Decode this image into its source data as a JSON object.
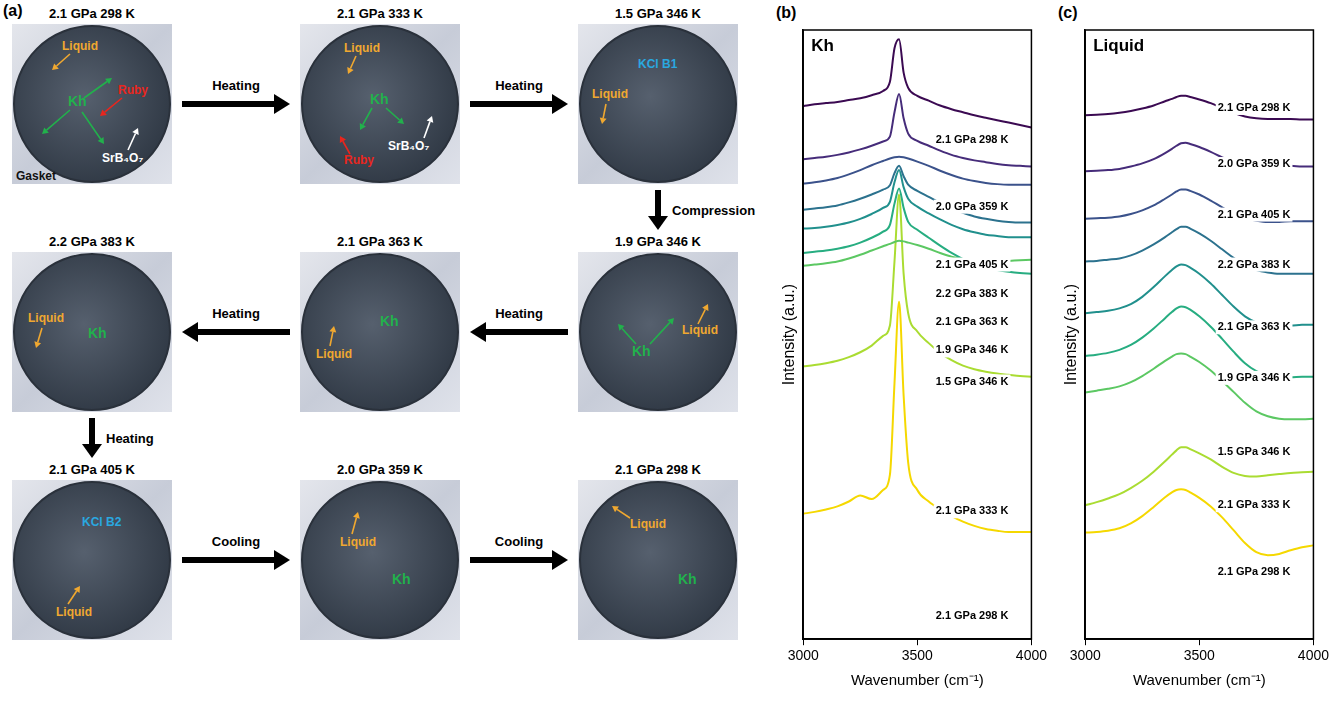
{
  "panel_a": {
    "letter": "(a)",
    "images": [
      {
        "title": "2.1 GPa 298 K",
        "labels": [
          {
            "text": "Liquid",
            "color": "#f0a830"
          },
          {
            "text": "Kh",
            "color": "#22b14c"
          },
          {
            "text": "Ruby",
            "color": "#e8261e"
          },
          {
            "text": "SrB₄O₇",
            "color": "#ffffff"
          },
          {
            "text": "Gasket",
            "color": "#111111"
          }
        ]
      },
      {
        "title": "2.1 GPa 333 K",
        "labels": [
          {
            "text": "Liquid",
            "color": "#f0a830"
          },
          {
            "text": "Kh",
            "color": "#22b14c"
          },
          {
            "text": "Ruby",
            "color": "#e8261e"
          },
          {
            "text": "SrB₄O₇",
            "color": "#ffffff"
          }
        ]
      },
      {
        "title": "1.5 GPa 346 K",
        "labels": [
          {
            "text": "Liquid",
            "color": "#f0a830"
          },
          {
            "text": "KCl B1",
            "color": "#2aa8e0"
          }
        ]
      },
      {
        "title": "2.2 GPa 383 K",
        "labels": [
          {
            "text": "Liquid",
            "color": "#f0a830"
          },
          {
            "text": "Kh",
            "color": "#22b14c"
          }
        ]
      },
      {
        "title": "2.1 GPa 363 K",
        "labels": [
          {
            "text": "Liquid",
            "color": "#f0a830"
          },
          {
            "text": "Kh",
            "color": "#22b14c"
          }
        ]
      },
      {
        "title": "1.9 GPa 346 K",
        "labels": [
          {
            "text": "Kh",
            "color": "#22b14c"
          },
          {
            "text": "Liquid",
            "color": "#f0a830"
          }
        ]
      },
      {
        "title": "2.1 GPa 405 K",
        "labels": [
          {
            "text": "KCl B2",
            "color": "#2aa8e0"
          },
          {
            "text": "Liquid",
            "color": "#f0a830"
          }
        ]
      },
      {
        "title": "2.0 GPa 359 K",
        "labels": [
          {
            "text": "Liquid",
            "color": "#f0a830"
          },
          {
            "text": "Kh",
            "color": "#22b14c"
          }
        ]
      },
      {
        "title": "2.1 GPa 298 K",
        "labels": [
          {
            "text": "Liquid",
            "color": "#f0a830"
          },
          {
            "text": "Kh",
            "color": "#22b14c"
          }
        ]
      }
    ],
    "arrows": [
      {
        "from": 0,
        "to": 1,
        "text": "Heating"
      },
      {
        "from": 1,
        "to": 2,
        "text": "Heating"
      },
      {
        "from": 2,
        "to": 5,
        "text": "Compression"
      },
      {
        "from": 5,
        "to": 4,
        "text": "Heating"
      },
      {
        "from": 4,
        "to": 3,
        "text": "Heating"
      },
      {
        "from": 3,
        "to": 6,
        "text": "Heating"
      },
      {
        "from": 6,
        "to": 7,
        "text": "Cooling"
      },
      {
        "from": 7,
        "to": 8,
        "text": "Cooling"
      }
    ]
  },
  "chart_data": [
    {
      "letter": "(b)",
      "type": "line",
      "title": "Kh",
      "x_label": "Wavenumber (cm⁻¹)",
      "y_label": "Intensity (a.u.)",
      "x": [
        3000,
        3050,
        3100,
        3150,
        3200,
        3250,
        3300,
        3350,
        3380,
        3400,
        3420,
        3440,
        3460,
        3500,
        3550,
        3600,
        3650,
        3700,
        3750,
        3800,
        3850,
        3900,
        3950,
        4000
      ],
      "xlim": [
        3000,
        4000
      ],
      "xticks": [
        3000,
        3500,
        4000
      ],
      "ylim": [
        0,
        100
      ],
      "tick_labels": "x",
      "grid": false,
      "series": [
        {
          "color": "#3b0a52",
          "values": [
            87.5,
            87.8,
            88.0,
            88.2,
            88.5,
            88.8,
            89.3,
            90.0,
            91.5,
            97.0,
            98.5,
            93.0,
            90.5,
            89.2,
            88.4,
            87.6,
            87.0,
            86.5,
            86.0,
            85.6,
            85.2,
            84.8,
            84.4,
            84.0
          ]
        },
        {
          "color": "#462c7a",
          "values": [
            78.8,
            79.0,
            79.2,
            79.5,
            79.9,
            80.4,
            81.0,
            81.7,
            82.5,
            86.5,
            89.5,
            85.5,
            83.0,
            81.8,
            81.0,
            80.2,
            79.5,
            79.0,
            78.6,
            78.3,
            78.0,
            77.8,
            77.7,
            77.6
          ]
        },
        {
          "color": "#3b528b",
          "values": [
            74.8,
            75.0,
            75.3,
            75.7,
            76.3,
            77.0,
            77.8,
            78.5,
            78.9,
            79.1,
            79.2,
            79.1,
            78.9,
            78.4,
            77.7,
            76.9,
            76.2,
            75.6,
            75.2,
            74.9,
            74.7,
            74.6,
            74.6,
            74.6
          ]
        },
        {
          "color": "#2c728e",
          "values": [
            70.5,
            70.7,
            70.9,
            71.2,
            71.7,
            72.3,
            73.0,
            73.8,
            74.5,
            76.5,
            77.7,
            76.0,
            74.6,
            73.6,
            72.6,
            71.6,
            70.7,
            70.0,
            69.4,
            69.0,
            68.7,
            68.5,
            68.4,
            68.4
          ]
        },
        {
          "color": "#21908d",
          "values": [
            67.4,
            67.5,
            67.7,
            68.0,
            68.4,
            69.0,
            69.8,
            70.8,
            71.8,
            75.0,
            77.0,
            74.2,
            72.3,
            71.0,
            69.9,
            68.9,
            68.0,
            67.3,
            66.8,
            66.4,
            66.2,
            66.0,
            66.0,
            66.0
          ]
        },
        {
          "color": "#27ad81",
          "values": [
            63.4,
            63.6,
            63.8,
            64.1,
            64.5,
            65.1,
            65.9,
            66.9,
            68.0,
            71.5,
            74.0,
            70.8,
            68.5,
            67.2,
            65.9,
            64.6,
            63.4,
            62.4,
            61.6,
            61.0,
            60.6,
            60.3,
            60.1,
            60.0
          ]
        },
        {
          "color": "#5cc863",
          "values": [
            61.3,
            61.5,
            61.7,
            62.0,
            62.5,
            63.1,
            63.8,
            64.5,
            64.9,
            65.2,
            65.4,
            65.3,
            65.1,
            64.7,
            64.1,
            63.4,
            62.8,
            62.4,
            62.1,
            62.0,
            62.0,
            62.1,
            62.2,
            62.3
          ]
        },
        {
          "color": "#aadc32",
          "values": [
            44.8,
            45.0,
            45.3,
            45.7,
            46.3,
            47.1,
            48.2,
            49.8,
            51.5,
            62.0,
            73.0,
            60.0,
            53.5,
            50.5,
            48.6,
            47.0,
            45.8,
            44.9,
            44.3,
            43.9,
            43.6,
            43.4,
            43.2,
            43.1
          ]
        },
        {
          "color": "#f5d800",
          "values": [
            20.6,
            20.9,
            21.3,
            21.8,
            22.6,
            23.6,
            23.0,
            24.5,
            27.0,
            42.0,
            55.4,
            40.0,
            29.0,
            24.5,
            22.6,
            21.3,
            20.2,
            19.3,
            18.6,
            18.1,
            17.8,
            17.6,
            17.6,
            17.6
          ]
        }
      ],
      "annotations": [
        {
          "text": "2.1 GPa 298 K",
          "x": 3740,
          "y": 82
        },
        {
          "text": "2.0 GPa 359 K",
          "x": 3740,
          "y": 71
        },
        {
          "text": "2.1 GPa 405 K",
          "x": 3740,
          "y": 61.5
        },
        {
          "text": "2.2 GPa 383 K",
          "x": 3740,
          "y": 56.6
        },
        {
          "text": "2.1 GPa 363 K",
          "x": 3740,
          "y": 52
        },
        {
          "text": "1.9 GPa 346 K",
          "x": 3740,
          "y": 47.4
        },
        {
          "text": "1.5 GPa 346 K",
          "x": 3740,
          "y": 42.3
        },
        {
          "text": "2.1 GPa 333 K",
          "x": 3740,
          "y": 21
        },
        {
          "text": "2.1 GPa 298 K",
          "x": 3740,
          "y": 3.8
        }
      ]
    },
    {
      "letter": "(c)",
      "type": "line",
      "title": "Liquid",
      "x_label": "Wavenumber (cm⁻¹)",
      "y_label": "Intensity (a.u.)",
      "x": [
        3000,
        3050,
        3100,
        3150,
        3200,
        3250,
        3300,
        3350,
        3380,
        3400,
        3420,
        3440,
        3460,
        3500,
        3550,
        3600,
        3650,
        3700,
        3750,
        3800,
        3850,
        3900,
        3950,
        4000
      ],
      "xlim": [
        3000,
        4000
      ],
      "xticks": [
        3000,
        3500,
        4000
      ],
      "ylim": [
        0,
        100
      ],
      "tick_labels": "x",
      "grid": false,
      "series": [
        {
          "color": "#3b0a52",
          "values": [
            86.0,
            86.1,
            86.2,
            86.4,
            86.7,
            87.1,
            87.6,
            88.3,
            88.7,
            89.0,
            89.2,
            89.2,
            89.0,
            88.6,
            88.0,
            87.2,
            86.4,
            85.8,
            85.5,
            85.4,
            85.4,
            85.4,
            85.3,
            85.3
          ]
        },
        {
          "color": "#462c7a",
          "values": [
            76.8,
            76.9,
            77.0,
            77.2,
            77.6,
            78.1,
            78.8,
            79.8,
            80.5,
            81.0,
            81.4,
            81.5,
            81.3,
            80.8,
            80.0,
            79.1,
            78.3,
            77.8,
            77.6,
            77.6,
            77.7,
            77.7,
            77.6,
            77.6
          ]
        },
        {
          "color": "#3b528b",
          "values": [
            69.0,
            69.1,
            69.2,
            69.4,
            69.8,
            70.4,
            71.2,
            72.3,
            73.0,
            73.5,
            73.8,
            73.8,
            73.6,
            73.0,
            72.0,
            70.9,
            69.9,
            69.1,
            68.7,
            68.5,
            68.5,
            68.6,
            68.6,
            68.6
          ]
        },
        {
          "color": "#2c728e",
          "values": [
            62.0,
            62.1,
            62.3,
            62.5,
            63.0,
            63.8,
            64.8,
            66.0,
            66.8,
            67.3,
            67.7,
            67.7,
            67.4,
            66.6,
            65.4,
            64.0,
            62.6,
            61.4,
            60.6,
            60.2,
            60.0,
            60.0,
            60.0,
            60.0
          ]
        },
        {
          "color": "#21908d",
          "values": [
            53.5,
            53.7,
            53.9,
            54.3,
            55.0,
            56.2,
            57.8,
            59.6,
            60.6,
            61.2,
            61.5,
            61.4,
            61.0,
            60.0,
            58.4,
            56.5,
            54.6,
            53.0,
            52.0,
            51.6,
            51.5,
            51.5,
            51.6,
            51.6
          ]
        },
        {
          "color": "#27ad81",
          "values": [
            46.5,
            46.7,
            47.0,
            47.5,
            48.3,
            49.5,
            51.0,
            52.7,
            53.7,
            54.3,
            54.6,
            54.5,
            54.1,
            53.0,
            51.3,
            49.3,
            47.2,
            45.3,
            44.0,
            43.3,
            43.0,
            43.0,
            43.1,
            43.1
          ]
        },
        {
          "color": "#5cc863",
          "values": [
            40.5,
            40.8,
            41.1,
            41.5,
            42.2,
            43.2,
            44.4,
            45.7,
            46.4,
            46.8,
            46.9,
            46.8,
            46.4,
            45.5,
            44.1,
            42.4,
            40.6,
            38.8,
            37.4,
            36.6,
            36.2,
            36.1,
            36.1,
            36.2
          ]
        },
        {
          "color": "#aadc32",
          "values": [
            22.0,
            22.5,
            23.1,
            23.8,
            24.8,
            26.0,
            27.5,
            29.2,
            30.3,
            31.0,
            31.5,
            31.5,
            31.2,
            30.5,
            29.5,
            28.3,
            27.3,
            26.8,
            26.7,
            26.9,
            27.1,
            27.3,
            27.4,
            27.5
          ]
        },
        {
          "color": "#f5d800",
          "values": [
            17.5,
            17.6,
            17.8,
            18.2,
            19.0,
            20.2,
            21.7,
            23.3,
            24.1,
            24.5,
            24.6,
            24.5,
            24.1,
            23.2,
            21.8,
            20.0,
            17.9,
            15.8,
            14.3,
            13.8,
            14.0,
            14.6,
            15.1,
            15.4
          ]
        }
      ],
      "annotations": [
        {
          "text": "2.1 GPa 298 K",
          "x": 3740,
          "y": 87.2
        },
        {
          "text": "2.0 GPa 359 K",
          "x": 3740,
          "y": 78
        },
        {
          "text": "2.1 GPa 405 K",
          "x": 3740,
          "y": 69.7
        },
        {
          "text": "2.2 GPa 383 K",
          "x": 3740,
          "y": 61.5
        },
        {
          "text": "2.1 GPa 363 K",
          "x": 3740,
          "y": 51.2
        },
        {
          "text": "1.9 GPa 346 K",
          "x": 3740,
          "y": 42.9
        },
        {
          "text": "1.5 GPa 346 K",
          "x": 3740,
          "y": 30.8
        },
        {
          "text": "2.1 GPa 333 K",
          "x": 3740,
          "y": 22
        },
        {
          "text": "2.1 GPa 298 K",
          "x": 3740,
          "y": 11
        }
      ]
    }
  ]
}
